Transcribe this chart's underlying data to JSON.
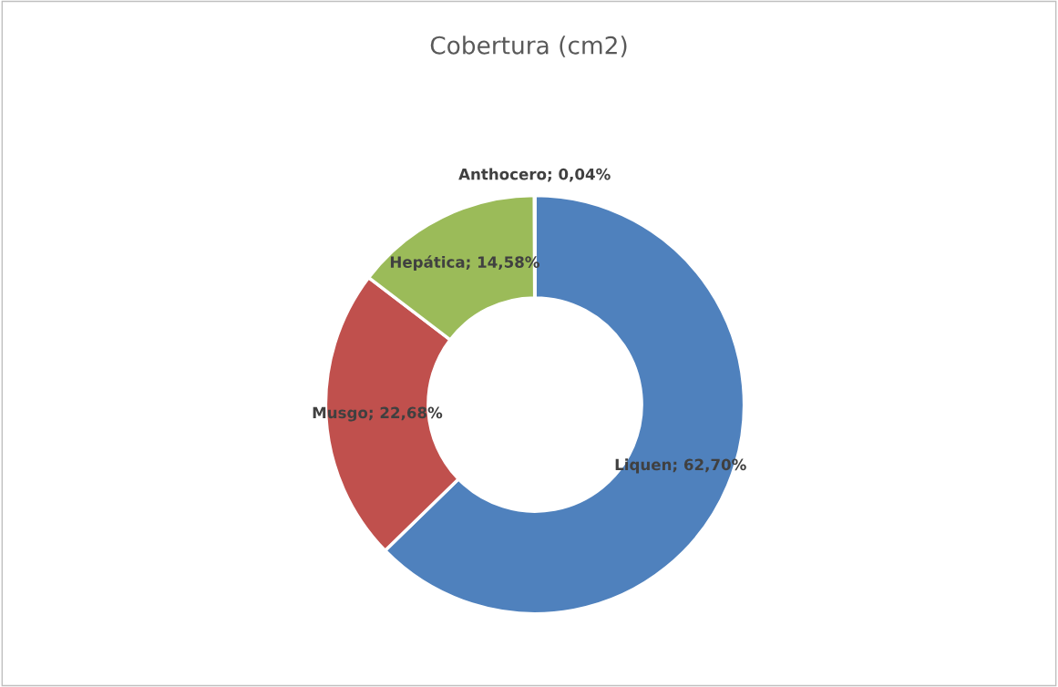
{
  "chart_data": {
    "type": "donut",
    "title": "Cobertura (cm2)",
    "categories": [
      "Liquen",
      "Musgo",
      "Hepática",
      "Anthocero"
    ],
    "values": [
      62.7,
      22.68,
      14.58,
      0.04
    ],
    "colors": [
      "#4f81bd",
      "#c0504d",
      "#9bbb59",
      "#8064a2"
    ],
    "value_labels": [
      "62,70%",
      "22,68%",
      "14,58%",
      "0,04%"
    ],
    "legend": false
  }
}
